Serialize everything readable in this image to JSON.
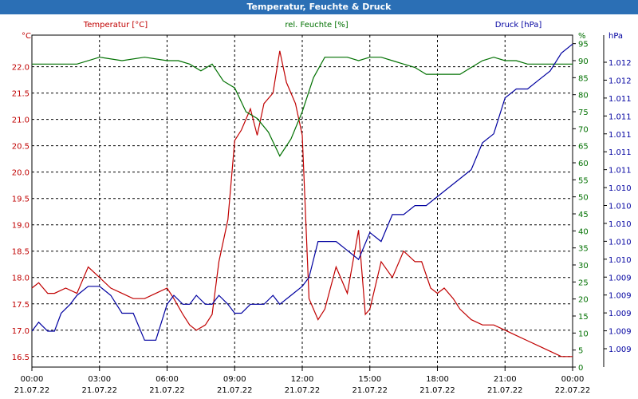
{
  "chart_data": {
    "type": "line",
    "title": "Temperatur, Feuchte & Druck",
    "x_ticks": [
      {
        "time": "00:00",
        "date": "21.07.22"
      },
      {
        "time": "03:00",
        "date": "21.07.22"
      },
      {
        "time": "06:00",
        "date": "21.07.22"
      },
      {
        "time": "09:00",
        "date": "21.07.22"
      },
      {
        "time": "12:00",
        "date": "21.07.22"
      },
      {
        "time": "15:00",
        "date": "21.07.22"
      },
      {
        "time": "18:00",
        "date": "21.07.22"
      },
      {
        "time": "21:00",
        "date": "21.07.22"
      },
      {
        "time": "00:00",
        "date": "22.07.22"
      }
    ],
    "xlim": [
      0,
      24
    ],
    "axes": {
      "temperature": {
        "unit": "°C",
        "ylim": [
          16.3,
          22.6
        ],
        "ticks": [
          "16.5",
          "17.0",
          "17.5",
          "18.0",
          "18.5",
          "19.0",
          "19.5",
          "20.0",
          "20.5",
          "21.0",
          "21.5",
          "22.0"
        ],
        "color": "#c00000"
      },
      "humidity": {
        "unit": "%",
        "ylim": [
          0,
          97.5
        ],
        "ticks": [
          "0",
          "5",
          "10",
          "15",
          "20",
          "25",
          "30",
          "35",
          "40",
          "45",
          "50",
          "55",
          "60",
          "65",
          "70",
          "75",
          "80",
          "85",
          "90",
          "95"
        ],
        "color": "#007000"
      },
      "pressure": {
        "unit": "hPa",
        "ylim": [
          1008.6,
          1012.3
        ],
        "ticks": [
          "1.009",
          "1.009",
          "1.009",
          "1.009",
          "1.009",
          "1.010",
          "1.010",
          "1.010",
          "1.010",
          "1.010",
          "1.011",
          "1.011",
          "1.011",
          "1.011",
          "1.011",
          "1.012",
          "1.012"
        ],
        "color": "#0000a0"
      }
    },
    "series": [
      {
        "name": "Temperatur [°C]",
        "axis": "temperature",
        "color": "#c00000",
        "x": [
          0,
          0.3,
          0.7,
          1,
          1.5,
          2,
          2.5,
          3,
          3.5,
          4,
          4.5,
          5,
          5.5,
          6,
          6.3,
          6.7,
          7,
          7.3,
          7.7,
          8,
          8.3,
          8.7,
          9,
          9.3,
          9.7,
          10,
          10.3,
          10.7,
          11,
          11.3,
          11.7,
          12,
          12.3,
          12.7,
          13,
          13.5,
          14,
          14.5,
          14.8,
          15,
          15.5,
          16,
          16.5,
          17,
          17.3,
          17.7,
          18,
          18.3,
          18.7,
          19,
          19.5,
          20,
          20.5,
          21,
          21.5,
          22,
          22.5,
          23,
          23.5,
          24
        ],
        "values": [
          17.8,
          17.9,
          17.7,
          17.7,
          17.8,
          17.7,
          18.2,
          18,
          17.8,
          17.7,
          17.6,
          17.6,
          17.7,
          17.8,
          17.6,
          17.3,
          17.1,
          17,
          17.1,
          17.3,
          18.3,
          19.1,
          20.6,
          20.8,
          21.2,
          20.7,
          21.3,
          21.5,
          22.3,
          21.7,
          21.3,
          20.7,
          17.6,
          17.2,
          17.4,
          18.2,
          17.7,
          18.9,
          17.3,
          17.4,
          18.3,
          18,
          18.5,
          18.3,
          18.3,
          17.8,
          17.7,
          17.8,
          17.6,
          17.4,
          17.2,
          17.1,
          17.1,
          17.0,
          16.9,
          16.8,
          16.7,
          16.6,
          16.5,
          16.5
        ]
      },
      {
        "name": "rel. Feuchte [%]",
        "axis": "humidity",
        "color": "#007000",
        "x": [
          0,
          1,
          2,
          3,
          4,
          5,
          6,
          6.5,
          7,
          7.5,
          8,
          8.5,
          9,
          9.5,
          10,
          10.5,
          11,
          11.5,
          12,
          12.5,
          13,
          13.5,
          14,
          14.5,
          15,
          15.5,
          16,
          16.5,
          17,
          17.5,
          18,
          18.5,
          19,
          19.5,
          20,
          20.5,
          21,
          21.5,
          22,
          22.5,
          23,
          23.5,
          24
        ],
        "values": [
          89,
          89,
          89,
          91,
          90,
          91,
          90,
          90,
          89,
          87,
          89,
          84,
          82,
          75,
          73,
          69,
          62,
          67,
          75,
          85,
          91,
          91,
          91,
          90,
          91,
          91,
          90,
          89,
          88,
          86,
          86,
          86,
          86,
          88,
          90,
          91,
          90,
          90,
          89,
          89,
          89,
          89,
          89
        ]
      },
      {
        "name": "Druck [hPa]",
        "axis": "pressure",
        "color": "#0000a0",
        "x": [
          0,
          0.3,
          0.7,
          1,
          1.3,
          1.7,
          2,
          2.5,
          3,
          3.5,
          4,
          4.5,
          5,
          5.5,
          6,
          6.3,
          6.7,
          7,
          7.3,
          7.7,
          8,
          8.3,
          8.7,
          9,
          9.3,
          9.7,
          10,
          10.3,
          10.7,
          11,
          11.5,
          12,
          12.3,
          12.7,
          13,
          13.5,
          14,
          14.5,
          15,
          15.5,
          16,
          16.5,
          17,
          17.5,
          18,
          18.5,
          19,
          19.5,
          20,
          20.5,
          21,
          21.5,
          22,
          22.5,
          23,
          23.5,
          24
        ],
        "values": [
          1009.0,
          1009.1,
          1009.0,
          1009.0,
          1009.2,
          1009.3,
          1009.4,
          1009.5,
          1009.5,
          1009.4,
          1009.2,
          1009.2,
          1008.9,
          1008.9,
          1009.3,
          1009.4,
          1009.3,
          1009.3,
          1009.4,
          1009.3,
          1009.3,
          1009.4,
          1009.3,
          1009.2,
          1009.2,
          1009.3,
          1009.3,
          1009.3,
          1009.4,
          1009.3,
          1009.4,
          1009.5,
          1009.6,
          1010.0,
          1010.0,
          1010.0,
          1009.9,
          1009.8,
          1010.1,
          1010.0,
          1010.3,
          1010.3,
          1010.4,
          1010.4,
          1010.5,
          1010.6,
          1010.7,
          1010.8,
          1011.1,
          1011.2,
          1011.6,
          1011.7,
          1011.7,
          1011.8,
          1011.9,
          1012.1,
          1012.2
        ]
      }
    ]
  }
}
